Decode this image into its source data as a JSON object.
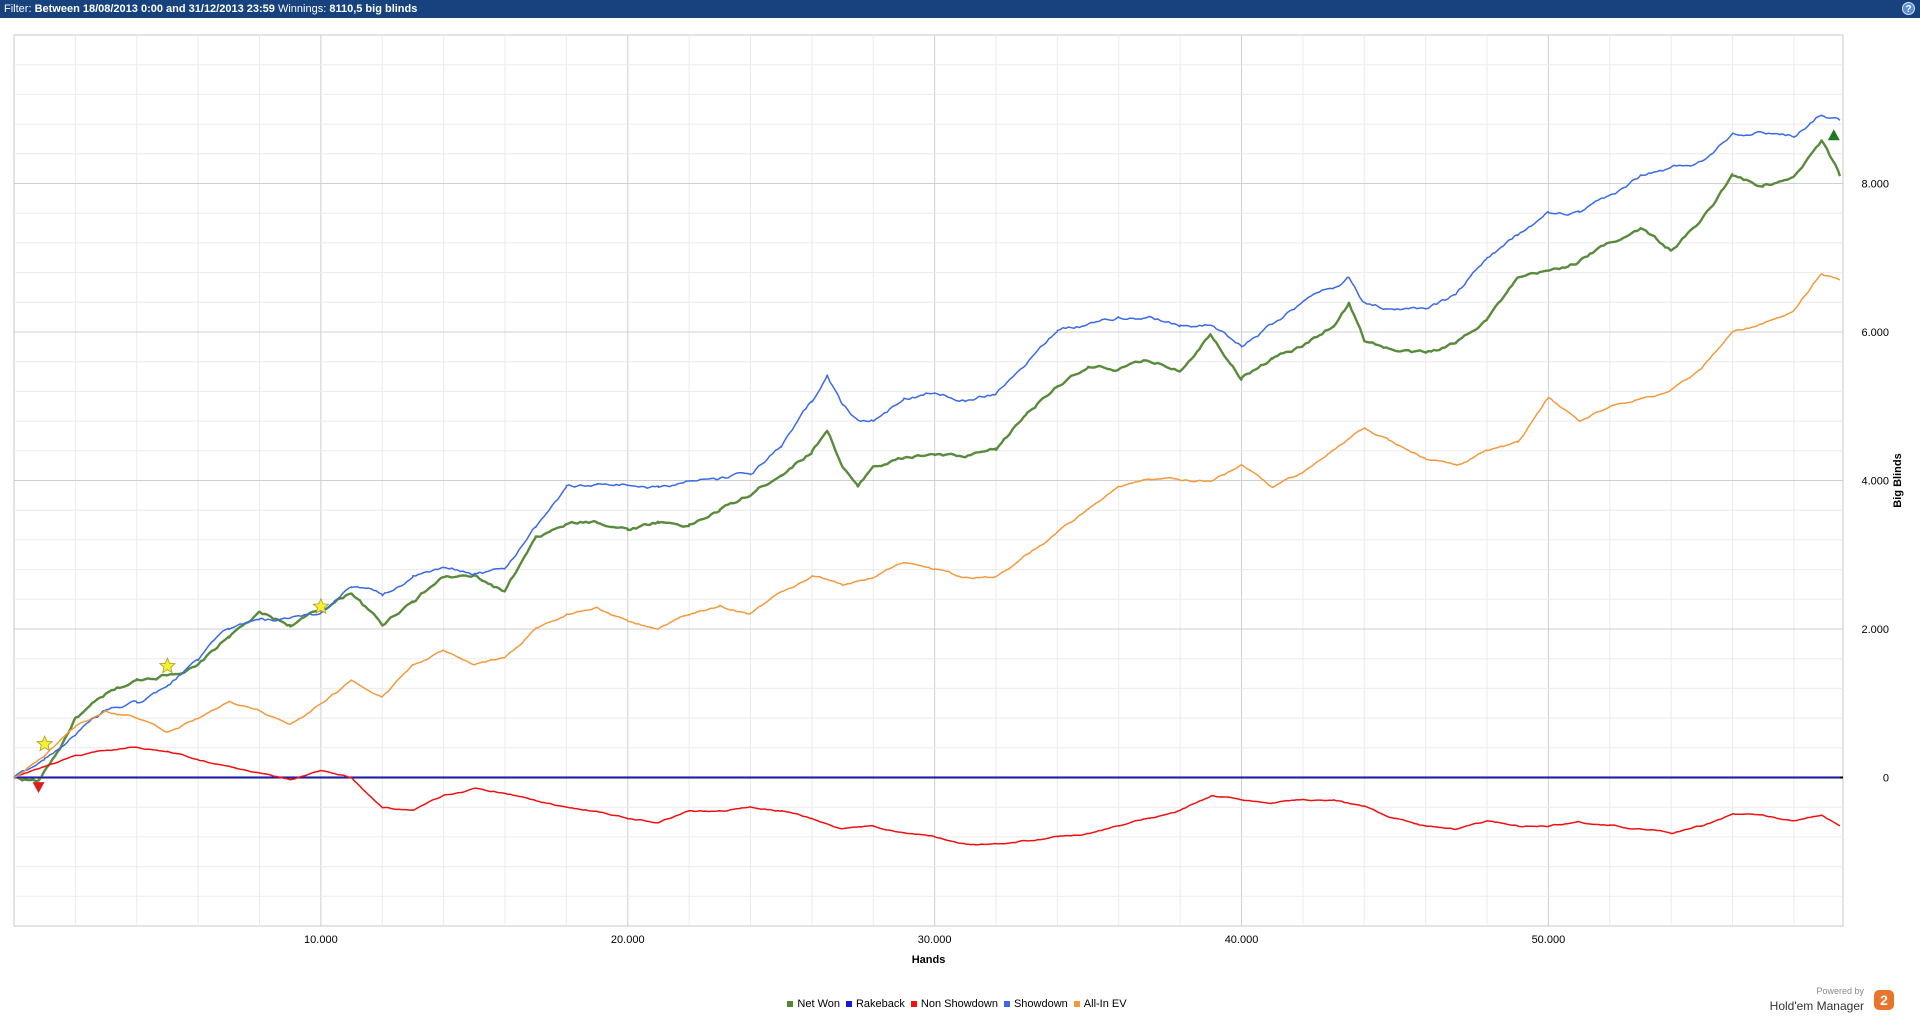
{
  "filter": {
    "prefix": "Filter:",
    "range": "Between 18/08/2013 0:00 and 31/12/2013 23:59",
    "winnings_label": "Winnings:",
    "winnings_value": "8110,5 big blinds"
  },
  "help": {
    "icon": "question-icon",
    "glyph": "?"
  },
  "branding": {
    "powered_by": "Powered by",
    "product": "Hold'em Manager",
    "logo_text": "2"
  },
  "chart_data": {
    "type": "line",
    "title": "",
    "xlabel": "Hands",
    "ylabel": "Big Blinds",
    "xlim": [
      0,
      59600
    ],
    "ylim": [
      -2000,
      10000
    ],
    "x_ticks": [
      10000,
      20000,
      30000,
      40000,
      50000
    ],
    "x_tick_labels": [
      "10.000",
      "20.000",
      "30.000",
      "40.000",
      "50.000"
    ],
    "y_ticks": [
      0,
      2000,
      4000,
      6000,
      8000
    ],
    "y_tick_labels": [
      "0",
      "2.000",
      "4.000",
      "6.000",
      "8.000"
    ],
    "y_axis_side": "right",
    "grid": true,
    "legend_position": "bottom",
    "series": [
      {
        "name": "Net Won",
        "color": "#5a8a3c",
        "legend_color": "#4e8a2f",
        "x": [
          0,
          800,
          1500,
          2000,
          3000,
          4000,
          5000,
          6000,
          7000,
          8000,
          9000,
          10000,
          11000,
          12000,
          13000,
          14000,
          15000,
          16000,
          17000,
          18000,
          19000,
          20000,
          21000,
          22000,
          23000,
          24000,
          25000,
          26000,
          26500,
          27000,
          27500,
          28000,
          29000,
          30000,
          31000,
          32000,
          33000,
          34000,
          35000,
          36000,
          37000,
          38000,
          39000,
          40000,
          41000,
          42000,
          43000,
          43500,
          44000,
          45000,
          46000,
          47000,
          48000,
          49000,
          50000,
          51000,
          52000,
          53000,
          54000,
          55000,
          56000,
          57000,
          58000,
          58900,
          59500
        ],
        "y": [
          0,
          -50,
          400,
          800,
          1100,
          1300,
          1400,
          1500,
          1900,
          2200,
          2050,
          2250,
          2500,
          2050,
          2400,
          2700,
          2700,
          2500,
          3200,
          3400,
          3450,
          3350,
          3450,
          3400,
          3600,
          3800,
          4100,
          4400,
          4700,
          4200,
          3900,
          4200,
          4300,
          4350,
          4300,
          4400,
          4900,
          5300,
          5500,
          5500,
          5600,
          5500,
          6000,
          5400,
          5650,
          5800,
          6100,
          6400,
          5900,
          5750,
          5700,
          5850,
          6200,
          6700,
          6800,
          6950,
          7200,
          7400,
          7100,
          7500,
          8100,
          7950,
          8050,
          8550,
          8100
        ]
      },
      {
        "name": "Rakeback",
        "color": "#1a1ad6",
        "legend_color": "#1a1ad6",
        "x": [
          0,
          59500
        ],
        "y": [
          0,
          0
        ]
      },
      {
        "name": "Non Showdown",
        "color": "#ee1111",
        "legend_color": "#ee1111",
        "x": [
          0,
          1000,
          2000,
          3000,
          4000,
          5000,
          6000,
          7000,
          8000,
          9000,
          10000,
          11000,
          12000,
          13000,
          14000,
          15000,
          16000,
          17000,
          18000,
          19000,
          20000,
          21000,
          22000,
          23000,
          24000,
          25000,
          26000,
          27000,
          28000,
          29000,
          30000,
          31000,
          32000,
          33000,
          34000,
          35000,
          36000,
          37000,
          38000,
          39000,
          40000,
          41000,
          42000,
          43000,
          44000,
          45000,
          46000,
          47000,
          48000,
          49000,
          50000,
          51000,
          52000,
          53000,
          54000,
          55000,
          56000,
          57000,
          58000,
          58900,
          59500
        ],
        "y": [
          0,
          150,
          280,
          350,
          410,
          350,
          250,
          150,
          50,
          -30,
          100,
          0,
          -400,
          -450,
          -250,
          -150,
          -200,
          -300,
          -400,
          -450,
          -550,
          -600,
          -450,
          -450,
          -400,
          -450,
          -550,
          -700,
          -650,
          -750,
          -800,
          -900,
          -900,
          -850,
          -800,
          -750,
          -650,
          -550,
          -450,
          -250,
          -300,
          -350,
          -300,
          -300,
          -400,
          -550,
          -650,
          -700,
          -600,
          -650,
          -650,
          -600,
          -650,
          -700,
          -750,
          -650,
          -500,
          -500,
          -600,
          -500,
          -650
        ]
      },
      {
        "name": "Showdown",
        "color": "#3a6ae6",
        "legend_color": "#3a6ae6",
        "x": [
          0,
          1000,
          2000,
          3000,
          4000,
          5000,
          6000,
          7000,
          8000,
          9000,
          10000,
          11000,
          12000,
          13000,
          14000,
          15000,
          16000,
          17000,
          18000,
          19000,
          20000,
          21000,
          22000,
          23000,
          24000,
          25000,
          26000,
          26500,
          27000,
          27500,
          28000,
          29000,
          30000,
          31000,
          32000,
          33000,
          34000,
          35000,
          36000,
          37000,
          38000,
          39000,
          40000,
          41000,
          42000,
          43000,
          43500,
          44000,
          45000,
          46000,
          47000,
          48000,
          49000,
          50000,
          51000,
          52000,
          53000,
          54000,
          55000,
          56000,
          57000,
          58000,
          58900,
          59500
        ],
        "y": [
          0,
          250,
          600,
          900,
          1000,
          1200,
          1600,
          2000,
          2100,
          2100,
          2200,
          2600,
          2450,
          2700,
          2800,
          2750,
          2800,
          3400,
          3900,
          3950,
          3950,
          3900,
          4000,
          4000,
          4100,
          4450,
          5050,
          5400,
          5000,
          4800,
          4800,
          5100,
          5200,
          5100,
          5200,
          5600,
          6050,
          6100,
          6200,
          6200,
          6100,
          6100,
          5800,
          6100,
          6400,
          6600,
          6750,
          6400,
          6300,
          6300,
          6500,
          7000,
          7300,
          7600,
          7600,
          7800,
          8100,
          8200,
          8300,
          8700,
          8700,
          8650,
          8950,
          8850
        ]
      },
      {
        "name": "All-In EV",
        "color": "#f39a3e",
        "legend_color": "#f39a3e",
        "x": [
          0,
          1000,
          2000,
          3000,
          4000,
          5000,
          6000,
          7000,
          8000,
          9000,
          10000,
          11000,
          12000,
          13000,
          14000,
          15000,
          16000,
          17000,
          18000,
          19000,
          20000,
          21000,
          22000,
          23000,
          24000,
          25000,
          26000,
          27000,
          28000,
          29000,
          30000,
          31000,
          32000,
          33000,
          34000,
          35000,
          36000,
          37000,
          38000,
          39000,
          40000,
          41000,
          42000,
          43000,
          44000,
          45000,
          46000,
          47000,
          48000,
          49000,
          50000,
          51000,
          52000,
          53000,
          54000,
          55000,
          56000,
          57000,
          58000,
          58900,
          59500
        ],
        "y": [
          0,
          300,
          700,
          900,
          800,
          600,
          800,
          1000,
          900,
          700,
          1000,
          1300,
          1100,
          1500,
          1700,
          1500,
          1600,
          2000,
          2200,
          2300,
          2100,
          2000,
          2200,
          2300,
          2200,
          2500,
          2700,
          2600,
          2700,
          2900,
          2800,
          2700,
          2700,
          3000,
          3300,
          3600,
          3900,
          4000,
          4000,
          4000,
          4200,
          3900,
          4100,
          4400,
          4700,
          4500,
          4300,
          4200,
          4400,
          4500,
          5100,
          4800,
          5000,
          5100,
          5200,
          5500,
          6000,
          6100,
          6300,
          6800,
          6700
        ]
      }
    ],
    "markers": [
      {
        "type": "star",
        "color": "#f7f032",
        "x": 1000,
        "y": 450
      },
      {
        "type": "star",
        "color": "#f7f032",
        "x": 5000,
        "y": 1500
      },
      {
        "type": "star",
        "color": "#f7f032",
        "x": 10000,
        "y": 2300
      },
      {
        "type": "triangle-down",
        "color": "#d62020",
        "x": 800,
        "y": -130
      },
      {
        "type": "triangle-up",
        "color": "#1f7a1f",
        "x": 59300,
        "y": 8650
      }
    ]
  }
}
